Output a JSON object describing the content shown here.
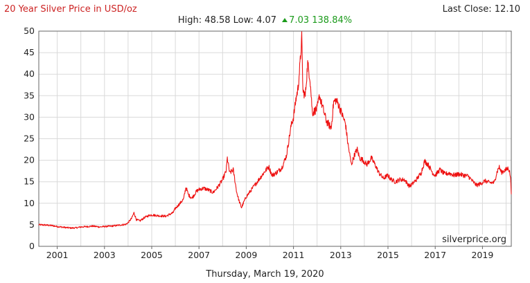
{
  "header": {
    "title": "20 Year Silver Price in USD/oz",
    "last_close_label": "Last Close:",
    "last_close_value": "12.10",
    "high_label": "High:",
    "high_value": "48.58",
    "low_label": "Low:",
    "low_value": "4.07",
    "change_value": "7.03",
    "change_percent": "138.84%"
  },
  "footer": {
    "date": "Thursday, March 19, 2020",
    "watermark": "silverprice.org"
  },
  "colors": {
    "line": "#ee1111",
    "title": "#cc2222",
    "positive": "#1a9a1a",
    "grid": "#d9d9d9",
    "axis": "#666666"
  },
  "chart_data": {
    "type": "line",
    "title": "20 Year Silver Price in USD/oz",
    "xlabel": "",
    "ylabel": "",
    "xlim": [
      2000.22,
      2020.22
    ],
    "ylim": [
      0,
      50
    ],
    "yticks": [
      0,
      5,
      10,
      15,
      20,
      25,
      30,
      35,
      40,
      45,
      50
    ],
    "xtick_labels": [
      "2001",
      "2003",
      "2005",
      "2007",
      "2009",
      "2011",
      "2013",
      "2015",
      "2017",
      "2019"
    ],
    "xticks": [
      2001,
      2003,
      2005,
      2007,
      2009,
      2011,
      2013,
      2015,
      2017,
      2019
    ],
    "grid": true,
    "legend": "none",
    "series": [
      {
        "x": [
          2000.22,
          2000.5,
          2000.8,
          2001.0,
          2001.3,
          2001.6,
          2001.8,
          2002.0,
          2002.3,
          2002.5,
          2002.8,
          2003.0,
          2003.3,
          2003.6,
          2003.9,
          2004.0,
          2004.15,
          2004.25,
          2004.35,
          2004.5,
          2004.7,
          2004.9,
          2005.0,
          2005.3,
          2005.6,
          2005.9,
          2006.0,
          2006.2,
          2006.35,
          2006.45,
          2006.55,
          2006.7,
          2006.9,
          2007.0,
          2007.2,
          2007.4,
          2007.6,
          2007.8,
          2008.0,
          2008.15,
          2008.2,
          2008.3,
          2008.45,
          2008.6,
          2008.7,
          2008.8,
          2008.9,
          2009.0,
          2009.2,
          2009.4,
          2009.6,
          2009.8,
          2009.95,
          2010.1,
          2010.3,
          2010.5,
          2010.7,
          2010.9,
          2011.0,
          2011.1,
          2011.2,
          2011.3,
          2011.35,
          2011.4,
          2011.5,
          2011.6,
          2011.7,
          2011.8,
          2011.9,
          2012.0,
          2012.1,
          2012.2,
          2012.4,
          2012.6,
          2012.7,
          2012.8,
          2012.9,
          2013.0,
          2013.2,
          2013.3,
          2013.45,
          2013.6,
          2013.7,
          2013.8,
          2013.95,
          2014.1,
          2014.3,
          2014.5,
          2014.6,
          2014.8,
          2015.0,
          2015.1,
          2015.3,
          2015.5,
          2015.7,
          2015.9,
          2016.0,
          2016.2,
          2016.4,
          2016.55,
          2016.7,
          2016.9,
          2017.0,
          2017.2,
          2017.4,
          2017.6,
          2017.8,
          2018.0,
          2018.2,
          2018.4,
          2018.6,
          2018.75,
          2018.9,
          2019.1,
          2019.3,
          2019.5,
          2019.6,
          2019.7,
          2019.8,
          2020.0,
          2020.1,
          2020.16,
          2020.2,
          2020.22
        ],
        "y": [
          5.0,
          4.95,
          4.8,
          4.6,
          4.4,
          4.25,
          4.3,
          4.5,
          4.6,
          4.7,
          4.5,
          4.6,
          4.7,
          4.9,
          5.1,
          5.5,
          6.5,
          7.8,
          6.2,
          5.9,
          6.7,
          7.2,
          7.3,
          7.1,
          7.0,
          7.8,
          8.8,
          10.0,
          11.0,
          13.8,
          12.0,
          11.2,
          12.8,
          13.2,
          13.5,
          13.1,
          12.5,
          13.8,
          15.5,
          17.5,
          20.5,
          17.0,
          17.8,
          12.5,
          10.5,
          9.0,
          10.3,
          11.5,
          13.0,
          14.5,
          16.0,
          17.5,
          18.5,
          16.5,
          17.2,
          18.2,
          21.0,
          28.0,
          30.0,
          34.0,
          37.0,
          44.0,
          48.5,
          36.0,
          35.0,
          42.5,
          39.0,
          31.0,
          31.5,
          32.0,
          35.0,
          33.0,
          29.0,
          27.5,
          33.5,
          34.0,
          33.0,
          31.5,
          28.5,
          24.0,
          19.0,
          21.5,
          22.5,
          20.5,
          20.0,
          19.0,
          20.5,
          18.5,
          17.2,
          15.8,
          16.5,
          15.7,
          15.0,
          15.5,
          15.5,
          14.0,
          14.3,
          15.5,
          17.0,
          19.8,
          19.0,
          17.0,
          16.5,
          17.8,
          16.8,
          17.0,
          16.5,
          16.8,
          16.5,
          16.3,
          15.0,
          14.2,
          14.5,
          15.2,
          14.8,
          14.8,
          17.0,
          18.5,
          17.2,
          17.8,
          18.2,
          17.0,
          15.0,
          12.1
        ]
      }
    ]
  }
}
